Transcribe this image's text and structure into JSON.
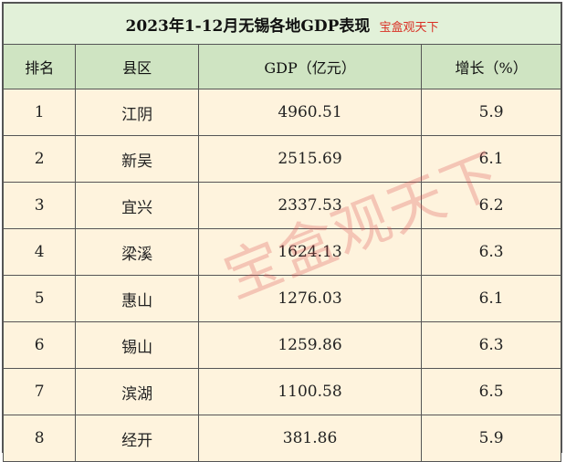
{
  "table": {
    "title": "2023年1-12月无锡各地GDP表现",
    "title_watermark": "宝盒观天下",
    "headers": [
      "排名",
      "县区",
      "GDP（亿元）",
      "增长（%）"
    ],
    "rows": [
      {
        "rank": "1",
        "district": "江阴",
        "gdp": "4960.51",
        "growth": "5.9"
      },
      {
        "rank": "2",
        "district": "新吴",
        "gdp": "2515.69",
        "growth": "6.1"
      },
      {
        "rank": "3",
        "district": "宜兴",
        "gdp": "2337.53",
        "growth": "6.2"
      },
      {
        "rank": "4",
        "district": "梁溪",
        "gdp": "1624.13",
        "growth": "6.3"
      },
      {
        "rank": "5",
        "district": "惠山",
        "gdp": "1276.03",
        "growth": "6.1"
      },
      {
        "rank": "6",
        "district": "锡山",
        "gdp": "1259.86",
        "growth": "6.3"
      },
      {
        "rank": "7",
        "district": "滨湖",
        "gdp": "1100.58",
        "growth": "6.5"
      },
      {
        "rank": "8",
        "district": "经开",
        "gdp": "381.86",
        "growth": "5.9"
      }
    ]
  },
  "watermark": "宝盒观天下",
  "colors": {
    "title_bg": "#e2f1d9",
    "header_bg": "#cfe4c2",
    "row_bg": "#fef3dd",
    "watermark": "#dc5050",
    "title_sub": "#d93025"
  }
}
